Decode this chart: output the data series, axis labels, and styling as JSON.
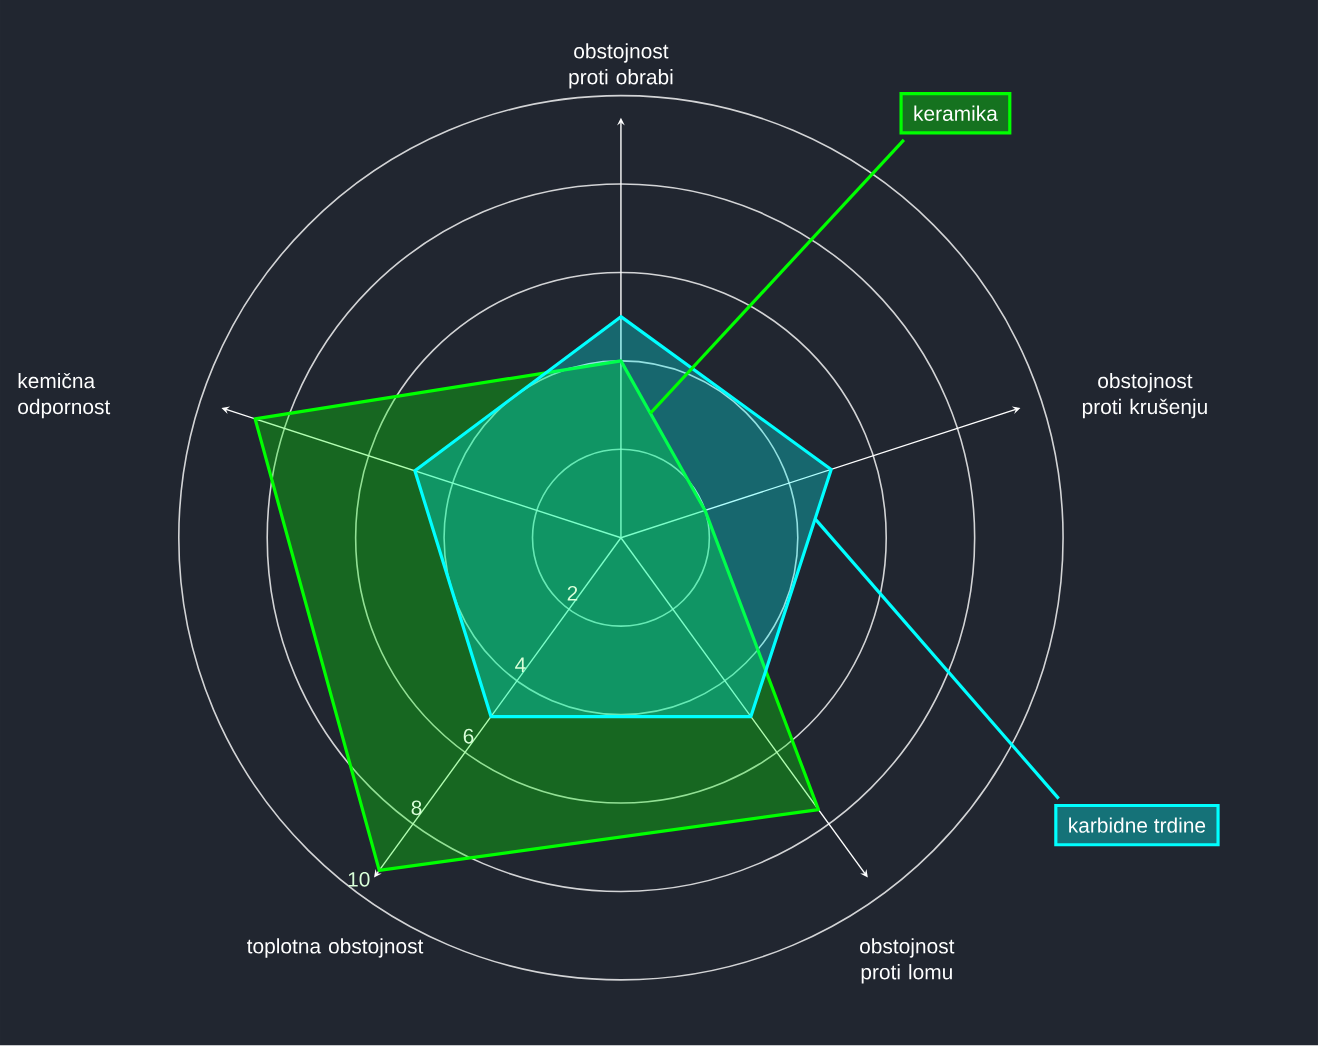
{
  "chart_data": {
    "type": "radar",
    "categories": [
      "obstojnost proti obrabi",
      "obstojnost proti krušenju",
      "obstojnost proti lomu",
      "toplotna obstojnost",
      "kemična odpornost"
    ],
    "series": [
      {
        "name": "keramika",
        "color": "#00ff00",
        "values": [
          4,
          2,
          7.6,
          9.3,
          8.7
        ]
      },
      {
        "name": "karbidne trdine",
        "color": "#00ffff",
        "values": [
          5,
          5,
          5,
          5,
          4.9
        ]
      }
    ],
    "ylim": [
      0,
      10
    ],
    "yticks": [
      2,
      4,
      6,
      8,
      10
    ],
    "grid": true,
    "legend": "right"
  }
}
